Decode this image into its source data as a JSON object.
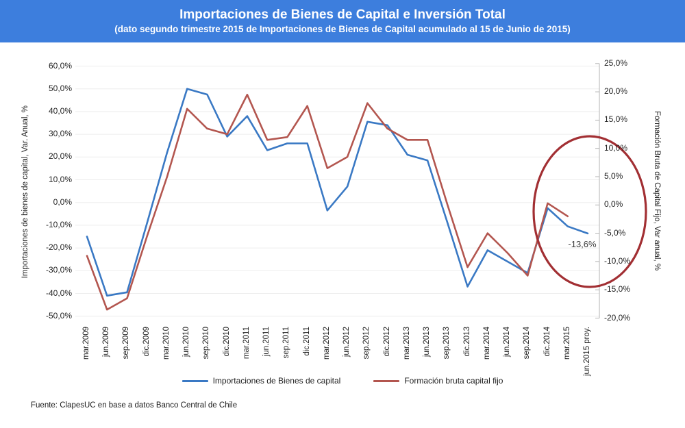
{
  "header": {
    "title": "Importaciones de Bienes de Capital e Inversión Total",
    "subtitle": "(dato segundo trimestre 2015 de Importaciones de Bienes de Capital acumulado al 15 de Junio de 2015)",
    "bg_color": "#3d7edd",
    "text_color": "#ffffff"
  },
  "footer": {
    "source": "Fuente: ClapesUC en base a datos Banco Central de Chile"
  },
  "chart_data": {
    "type": "line",
    "categories": [
      "mar.2009",
      "jun.2009",
      "sep.2009",
      "dic.2009",
      "mar.2010",
      "jun.2010",
      "sep.2010",
      "dic.2010",
      "mar.2011",
      "jun.2011",
      "sep.2011",
      "dic.2011",
      "mar.2012",
      "jun.2012",
      "sep.2012",
      "dic.2012",
      "mar.2013",
      "jun.2013",
      "sep.2013",
      "dic.2013",
      "mar.2014",
      "jun.2014",
      "sep.2014",
      "dic.2014",
      "mar.2015",
      "jun.2015 proy."
    ],
    "series": [
      {
        "name": "Importaciones de Bienes de capital",
        "axis": "left",
        "color": "#3a79c4",
        "values": [
          -15,
          -41,
          -39.5,
          -9,
          22,
          50,
          47.5,
          29,
          38,
          23,
          26,
          26,
          -3.5,
          7,
          35.5,
          34,
          21,
          18.5,
          -9,
          -37,
          -21,
          -26,
          -31,
          -2.5,
          -10.5,
          -13.6
        ]
      },
      {
        "name": "Formación bruta capital fijo",
        "axis": "right",
        "color": "#b3564f",
        "values": [
          -9,
          -18.5,
          -16.5,
          -5.5,
          5,
          17,
          13.5,
          12.5,
          19.5,
          11.5,
          12,
          17.5,
          6.5,
          8.5,
          18,
          13.5,
          11.5,
          11.5,
          0,
          -11,
          -5,
          -8.5,
          -12.5,
          0.3,
          -2,
          null
        ]
      }
    ],
    "left_axis": {
      "label": "Importaciones de bienes de capital, Var. Anual, %",
      "max": 60,
      "min": -50,
      "step": 10,
      "tick_labels": [
        "60,0%",
        "50,0%",
        "40,0%",
        "30,0%",
        "20,0%",
        "10,0%",
        "0,0%",
        "-10,0%",
        "-20,0%",
        "-30,0%",
        "-40,0%",
        "-50,0%"
      ]
    },
    "right_axis": {
      "label": "Formación Bruta de Capital Fijo, Var anual, %",
      "max": 25,
      "min": -20,
      "step": 5,
      "tick_labels": [
        "25,0%",
        "20,0%",
        "15,0%",
        "10,0%",
        "5,0%",
        "0,0%",
        "-5,0%",
        "-10,0%",
        "-15,0%",
        "-20,0%"
      ]
    },
    "annotation": {
      "text": "-13,6%",
      "x_index": 25,
      "value": -13.6
    },
    "highlight_ellipse": {
      "color": "#a22f33"
    },
    "grid_color": "#ededed",
    "axis_line_color": "#b3b3b3",
    "legend_position": "bottom"
  }
}
